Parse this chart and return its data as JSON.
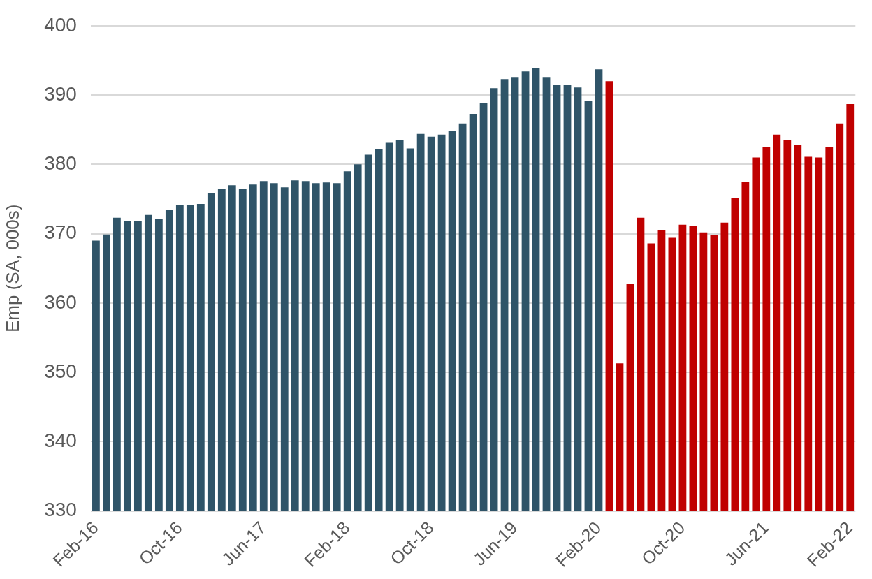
{
  "chart_data": {
    "type": "bar",
    "ylabel": "Emp (SA, 000s)",
    "categories": [
      "Feb-16",
      null,
      null,
      null,
      null,
      null,
      null,
      null,
      "Oct-16",
      null,
      null,
      null,
      null,
      null,
      null,
      null,
      "Jun-17",
      null,
      null,
      null,
      null,
      null,
      null,
      null,
      "Feb-18",
      null,
      null,
      null,
      null,
      null,
      null,
      null,
      "Oct-18",
      null,
      null,
      null,
      null,
      null,
      null,
      null,
      "Jun-19",
      null,
      null,
      null,
      null,
      null,
      null,
      null,
      "Feb-20",
      null,
      null,
      null,
      null,
      null,
      null,
      null,
      "Oct-20",
      null,
      null,
      null,
      null,
      null,
      null,
      null,
      "Jun-21",
      null,
      null,
      null,
      null,
      null,
      null,
      null,
      "Feb-22"
    ],
    "values": [
      369.0,
      369.9,
      372.3,
      371.8,
      371.8,
      372.7,
      372.1,
      373.5,
      374.1,
      374.1,
      374.3,
      375.9,
      376.5,
      377.0,
      376.4,
      377.1,
      377.6,
      377.3,
      376.7,
      377.7,
      377.6,
      377.3,
      377.4,
      377.3,
      379.0,
      380.0,
      381.4,
      382.2,
      383.1,
      383.5,
      382.3,
      384.4,
      384.0,
      384.3,
      384.8,
      385.9,
      387.3,
      388.9,
      391.0,
      392.3,
      392.6,
      393.4,
      393.9,
      392.6,
      391.5,
      391.5,
      391.1,
      389.2,
      393.7,
      392.0,
      351.3,
      362.7,
      372.3,
      368.6,
      370.5,
      369.4,
      371.3,
      371.1,
      370.2,
      369.8,
      371.6,
      375.2,
      377.5,
      381.0,
      382.5,
      384.3,
      383.5,
      382.8,
      381.1,
      381.0,
      382.5,
      385.9,
      388.7
    ],
    "colors": [
      "#2f5468",
      "#2f5468",
      "#2f5468",
      "#2f5468",
      "#2f5468",
      "#2f5468",
      "#2f5468",
      "#2f5468",
      "#2f5468",
      "#2f5468",
      "#2f5468",
      "#2f5468",
      "#2f5468",
      "#2f5468",
      "#2f5468",
      "#2f5468",
      "#2f5468",
      "#2f5468",
      "#2f5468",
      "#2f5468",
      "#2f5468",
      "#2f5468",
      "#2f5468",
      "#2f5468",
      "#2f5468",
      "#2f5468",
      "#2f5468",
      "#2f5468",
      "#2f5468",
      "#2f5468",
      "#2f5468",
      "#2f5468",
      "#2f5468",
      "#2f5468",
      "#2f5468",
      "#2f5468",
      "#2f5468",
      "#2f5468",
      "#2f5468",
      "#2f5468",
      "#2f5468",
      "#2f5468",
      "#2f5468",
      "#2f5468",
      "#2f5468",
      "#2f5468",
      "#2f5468",
      "#2f5468",
      "#2f5468",
      "#c00000",
      "#c00000",
      "#c00000",
      "#c00000",
      "#c00000",
      "#c00000",
      "#c00000",
      "#c00000",
      "#c00000",
      "#c00000",
      "#c00000",
      "#c00000",
      "#c00000",
      "#c00000",
      "#c00000",
      "#c00000",
      "#c00000",
      "#c00000",
      "#c00000",
      "#c00000",
      "#c00000",
      "#c00000",
      "#c00000",
      "#c00000"
    ],
    "ylim": [
      330,
      400
    ],
    "yticks": [
      330,
      340,
      350,
      360,
      370,
      380,
      390,
      400
    ],
    "grid": "y"
  }
}
